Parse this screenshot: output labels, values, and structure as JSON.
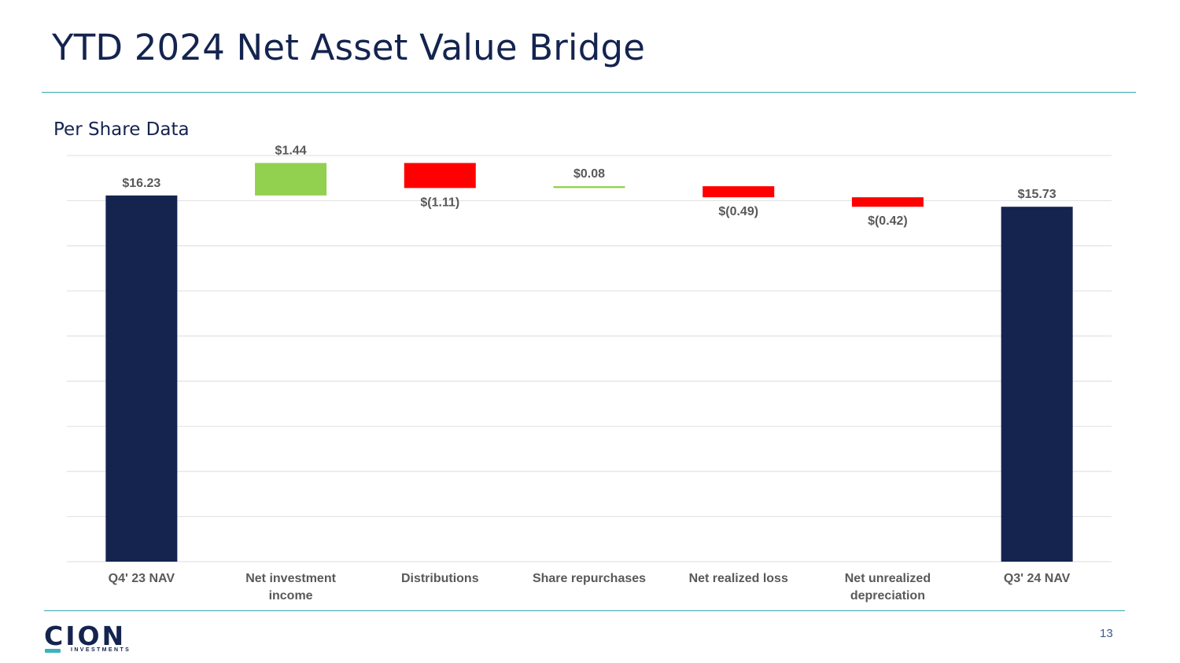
{
  "title": "YTD 2024 Net Asset Value Bridge",
  "subtitle": "Per Share Data",
  "footer": {
    "logo_name": "CION",
    "logo_sub": "INVESTMENTS",
    "page_number": "13"
  },
  "colors": {
    "navy": "#14244f",
    "increase": "#92d050",
    "decrease": "#ff0000",
    "teal": "#3aa6b1",
    "grid": "#e3e3e3"
  },
  "chart_data": {
    "type": "waterfall",
    "title": "",
    "ylabel": "",
    "xlabel": "",
    "ylim": [
      0,
      18
    ],
    "gridlines": true,
    "categories": [
      [
        "Q4' 23 NAV"
      ],
      [
        "Net investment",
        "income"
      ],
      [
        "Distributions"
      ],
      [
        "Share repurchases"
      ],
      [
        "Net realized loss"
      ],
      [
        "Net unrealized",
        "depreciation"
      ],
      [
        "Q3' 24 NAV"
      ]
    ],
    "values": [
      16.23,
      1.44,
      -1.11,
      0.08,
      -0.49,
      -0.42,
      15.73
    ],
    "kinds": [
      "total",
      "delta",
      "delta",
      "delta",
      "delta",
      "delta",
      "total"
    ],
    "labels": [
      "$16.23",
      "$1.44",
      "$(1.11)",
      "$0.08",
      "$(0.49)",
      "$(0.42)",
      "$15.73"
    ]
  }
}
